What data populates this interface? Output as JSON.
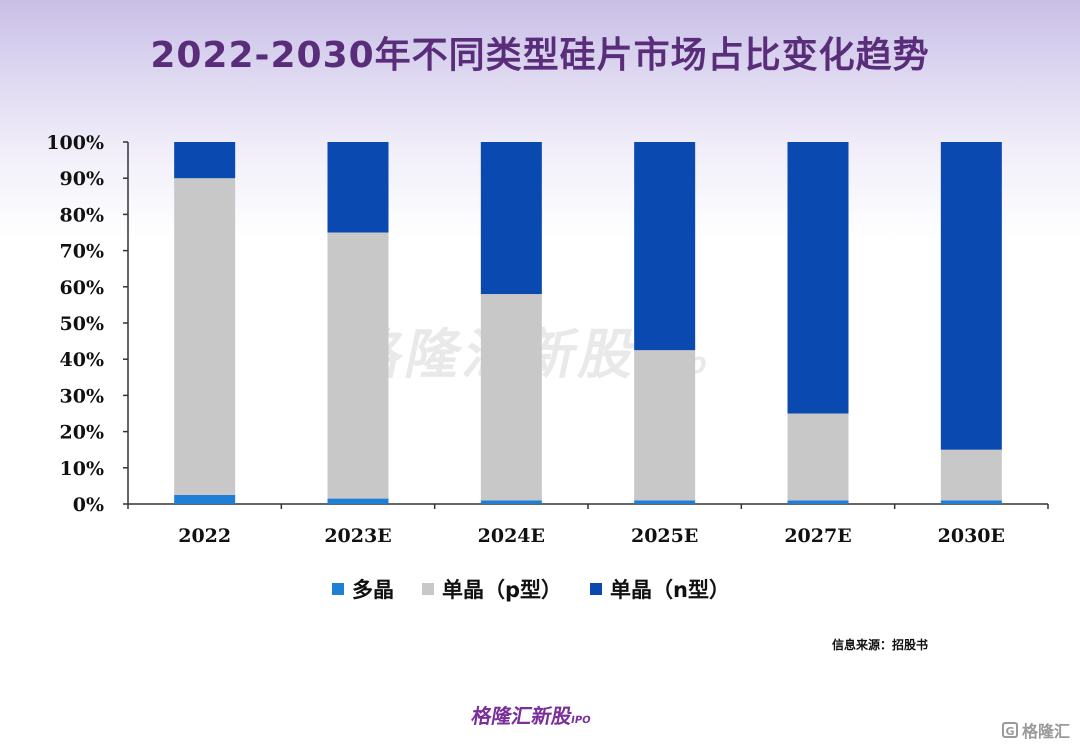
{
  "title": "2022-2030年不同类型硅片市场占比变化趋势",
  "chart_data": {
    "type": "bar",
    "stacked": true,
    "categories": [
      "2022",
      "2023E",
      "2024E",
      "2025E",
      "2027E",
      "2030E"
    ],
    "series": [
      {
        "name": "多晶",
        "color": "#1f7fd4",
        "values": [
          2.5,
          1.5,
          1,
          1,
          1,
          1
        ]
      },
      {
        "name": "单晶（p型）",
        "color": "#c8c8c8",
        "values": [
          87.5,
          73.5,
          57,
          41.5,
          24,
          14
        ]
      },
      {
        "name": "单晶（n型）",
        "color": "#0a49b0",
        "values": [
          10,
          25,
          42,
          57.5,
          75,
          85
        ]
      }
    ],
    "ylim": [
      0,
      100
    ],
    "yticks": [
      "0%",
      "10%",
      "20%",
      "30%",
      "40%",
      "50%",
      "60%",
      "70%",
      "80%",
      "90%",
      "100%"
    ],
    "xlabel": "",
    "ylabel": "",
    "legend_position": "bottom"
  },
  "source": "信息来源：招股书",
  "watermark": {
    "name": "格隆汇新股",
    "suffix": "IPO"
  },
  "brand": {
    "name": "格隆汇新股",
    "suffix": "IPO"
  },
  "corner_logo": {
    "icon": "G",
    "text": "格隆汇"
  }
}
